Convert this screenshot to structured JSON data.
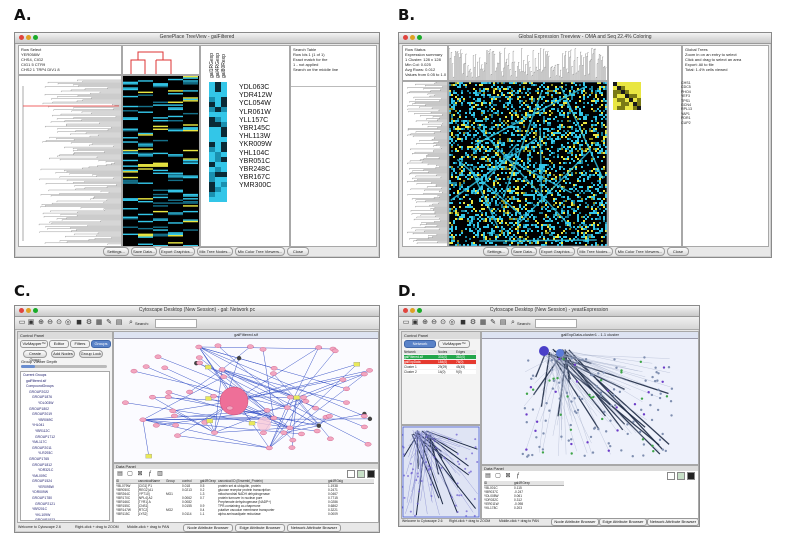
{
  "panels": {
    "a": {
      "label": "A.",
      "title": "GenePlace TreeView - galFiltered",
      "info_left": [
        "Row Select",
        "YER058W",
        "CHS4, CIG2",
        "CIG1 5 CTR9",
        "CHS2 1 TRP4 DIV1 8"
      ],
      "info_right": [
        "Search Table",
        "Row Ids 1 (1 of 1)",
        "Exact match for the",
        "1 - not applied",
        "Search on the middle line"
      ],
      "columns": [
        "gal1RGexp",
        "gal4RGexp",
        "gal80Rexp"
      ],
      "genes": [
        "YDL063C",
        "YDR412W",
        "YCL054W",
        "YLR061W",
        "YLL157C",
        "YBR145C",
        "YHL113W",
        "YKR009W",
        "YHL104C",
        "YBR051C",
        "YBR248C",
        "YBR167C",
        "YMR300C"
      ],
      "buttons": [
        "Settings...",
        "Save Data...",
        "Export Graphics...",
        "Mix Tree Nodes...",
        "Mix Color Tree Viewers...",
        "Close"
      ]
    },
    "b": {
      "label": "B.",
      "title": "Global Expression Treeview - OMA and Seq 22.4% Coloring",
      "info_left": [
        "Row Status",
        "Expression summary",
        "1 Cluster: 128 x 128",
        "Min Col: 0.025",
        "Avg Rows: 0.012",
        "Values from 0.05 to 1.0"
      ],
      "info_right": [
        "Global Trees",
        "Zoom in on an entry to select",
        "Click and drag to select an area",
        "Export: All to file",
        "Total: 1.4% cells viewed"
      ],
      "side_list": [
        "CHS1",
        "CDC5",
        "PHO4",
        "YEF3",
        "TPS1",
        "GCN4",
        "RPL13",
        "YAP1",
        "PDR1",
        "CUP2"
      ],
      "buttons": [
        "Settings...",
        "Save Data...",
        "Export Graphics...",
        "Mix Tree Nodes...",
        "Mix Color Tree Viewers...",
        "Close"
      ]
    },
    "c": {
      "label": "C.",
      "title": "Cytoscape Desktop (New Session) - gal: Network pc",
      "search_label": "Search:",
      "control_panel": "Control Panel",
      "tabs": [
        "VizMapper™",
        "Editor",
        "Filters",
        "Groups"
      ],
      "subtabs": [
        "Create Group",
        "Add Nodes",
        "Group Lock"
      ],
      "tree_header": "Group Viewer Depth",
      "tree_items": [
        "Current Groups",
        "galFiltered.sif",
        "CompoundGroups",
        "GROUP2022",
        "GROUP1876",
        "YDL003W",
        "GROUP1802",
        "GROUP2019",
        "YBR069C",
        "YHL041",
        "YBR112C",
        "GROUP1712",
        "YML117C",
        "GROUP2011",
        "YLR293C",
        "GROUP1765",
        "GROUP1812",
        "YDR321C",
        "YML009C",
        "GROUP1524",
        "YER095W",
        "YDR009W",
        "GROUP1780",
        "GROUP2121",
        "YBR201C",
        "YKL109W",
        "GROUP1923",
        "GROUP1900",
        "YER100W",
        "YMR001C",
        "YLR197W"
      ],
      "network_title": "galFiltered.sif",
      "data_panel": "Data Panel",
      "table_headers": [
        "ID",
        "canonicalName",
        "Group",
        "control",
        "gal4RGexp",
        "canonical ID (Ensembl_Protein)",
        "gal4RGsig"
      ],
      "table_rows": [
        [
          "YBL079W",
          "[CIG1] P1",
          "",
          "0.018",
          "0.5",
          "protein set at ubiquitin, protein",
          "1.1938"
        ],
        [
          "YBR050C",
          "[REG2] A1",
          "",
          "0.0213",
          "0.2",
          "glucose receptor protein transcription",
          "0.2471"
        ],
        [
          "YBR264C",
          "[YPT10]",
          "MG1",
          "",
          "1.3",
          "mitochondrial NADH dehydrogenase",
          "0.0467"
        ],
        [
          "YBR170C",
          "[NPL4] A2",
          "",
          "0.0062",
          "0.7",
          "protein turnover in nuclear pore",
          "0.7715"
        ],
        [
          "YBR166C",
          "[TYR1] A",
          "",
          "0.0082",
          "",
          "Prephenate dehydrogenase (NADP+)",
          "0.0286"
        ],
        [
          "YBR155C",
          "[CNS1]",
          "",
          "0.0155",
          "0.9",
          "TPR-containing co-chaperone",
          "0.6862"
        ],
        [
          "YBR147W",
          "[RTC2]",
          "MG2",
          "",
          "0.4",
          "putative vacuolar membrane transporter",
          "0.3221"
        ],
        [
          "YBR115C",
          "[LYS2]",
          "",
          "0.0114",
          "1.1",
          "alpha aminoadipate reductase",
          "0.0009"
        ]
      ],
      "bottom_tabs": [
        "Node Attribute Browser",
        "Edge Attribute Browser",
        "Network Attribute Browser"
      ],
      "status": [
        "Welcome to Cytoscape 2.6",
        "Right-click + drag to ZOOM",
        "Middle-click + drag to PAN"
      ]
    },
    "d": {
      "label": "D.",
      "title": "Cytoscape Desktop (New Session) - yeastExpression",
      "search_label": "Search:",
      "control_panel": "Control Panel",
      "tabs": [
        "Network",
        "VizMapper™"
      ],
      "network_list_header": [
        "Network",
        "Nodes",
        "Edges"
      ],
      "network_list": [
        [
          "galFiltered.sif",
          "331(0)",
          "362(0)"
        ],
        [
          "galExpData",
          "184(0)",
          "76(0)"
        ],
        [
          "Cluster 1",
          "29(29)",
          "45(45)"
        ],
        [
          "Cluster 2",
          "14(0)",
          "9(0)"
        ]
      ],
      "network_title": "galExpData-cluster1 - 1.1 cluster",
      "data_panel": "Data Panel",
      "table_headers": [
        "ID",
        "gal4RGexp"
      ],
      "table_rows": [
        [
          "YBL001C",
          "0.115"
        ],
        [
          "YBR037C",
          "-0.247"
        ],
        [
          "YDL008W",
          "0.061"
        ],
        [
          "YDR032C",
          "0.312"
        ],
        [
          "YER011W",
          "-0.098"
        ],
        [
          "YKL178C",
          "0.203"
        ]
      ],
      "bottom_tabs": [
        "Node Attribute Browser",
        "Edge Attribute Browser",
        "Network Attribute Browser"
      ],
      "status": [
        "Welcome to Cytoscape 2.6",
        "Right-click + drag to ZOOM",
        "Middle-click + drag to PAN"
      ]
    }
  },
  "colors": {
    "heat_blue": "#33c6e8",
    "heat_yellow": "#e9e642",
    "heat_black": "#000000",
    "node_pink": "#f2a6c0",
    "node_big": "#ee6f98",
    "edge_blue": "#3d57c8",
    "accent_blue": "#5a83c8",
    "selection_red": "#e53a2f",
    "selection_green": "#22a64a"
  }
}
